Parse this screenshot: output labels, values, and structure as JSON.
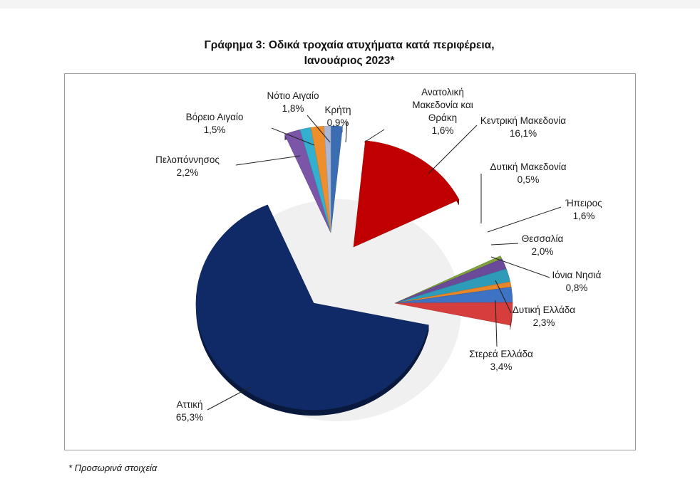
{
  "chart_data": {
    "type": "pie",
    "title_line1": "Γράφημα 3: Οδικά τροχαία ατυχήματα κατά περιφέρεια,",
    "title_line2": "Ιανουάριος 2023*",
    "slices": [
      {
        "label": [
          "Ανατολική",
          "Μακεδονία και",
          "Θράκη"
        ],
        "value_text": "1,6%",
        "value": 1.6,
        "color": "#3B6DB3"
      },
      {
        "label": [
          "Κεντρική Μακεδονία"
        ],
        "value_text": "16,1%",
        "value": 16.1,
        "color": "#C00000"
      },
      {
        "label": [
          "Δυτική Μακεδονία"
        ],
        "value_text": "0,5%",
        "value": 0.5,
        "color": "#7FA23C"
      },
      {
        "label": [
          "Ήπειρος"
        ],
        "value_text": "1,6%",
        "value": 1.6,
        "color": "#6B4A9A"
      },
      {
        "label": [
          "Θεσσαλία"
        ],
        "value_text": "2,0%",
        "value": 2.0,
        "color": "#2E9BB8"
      },
      {
        "label": [
          "Ιόνια Νησιά"
        ],
        "value_text": "0,8%",
        "value": 0.8,
        "color": "#E8862A"
      },
      {
        "label": [
          "Δυτική Ελλάδα"
        ],
        "value_text": "2,3%",
        "value": 2.3,
        "color": "#3E72C2"
      },
      {
        "label": [
          "Στερεά Ελλάδα"
        ],
        "value_text": "3,4%",
        "value": 3.4,
        "color": "#D63D3D"
      },
      {
        "label": [
          "Αττική"
        ],
        "value_text": "65,3%",
        "value": 65.3,
        "color": "#0F2A66"
      },
      {
        "label": [
          "Πελοπόννησος"
        ],
        "value_text": "2,2%",
        "value": 2.2,
        "color": "#7A55A8"
      },
      {
        "label": [
          "Βόρειο Αιγαίο"
        ],
        "value_text": "1,5%",
        "value": 1.5,
        "color": "#35AFCF"
      },
      {
        "label": [
          "Νότιο Αιγαίο"
        ],
        "value_text": "1,8%",
        "value": 1.8,
        "color": "#EE8F2C"
      },
      {
        "label": [
          "Κρήτη"
        ],
        "value_text": "0,9%",
        "value": 0.9,
        "color": "#AAB8D6"
      }
    ],
    "legend": "none",
    "footnote": "* Προσωρινά στοιχεία"
  }
}
